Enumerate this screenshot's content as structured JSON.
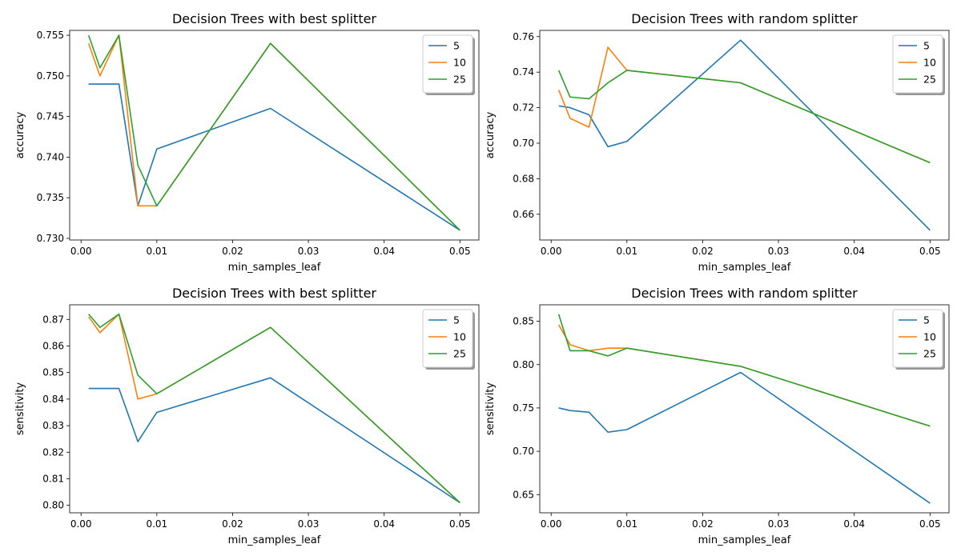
{
  "chart_data": [
    {
      "type": "line",
      "title": "Decision Trees with best splitter",
      "xlabel": "min_samples_leaf",
      "ylabel": "accuracy",
      "x": [
        0.001,
        0.0025,
        0.005,
        0.0075,
        0.01,
        0.025,
        0.05
      ],
      "xlim": [
        -0.0015,
        0.0525
      ],
      "ylim": [
        0.7298,
        0.7556
      ],
      "xticks": [
        0.0,
        0.01,
        0.02,
        0.03,
        0.04,
        0.05
      ],
      "xtick_labels": [
        "0.00",
        "0.01",
        "0.02",
        "0.03",
        "0.04",
        "0.05"
      ],
      "yticks": [
        0.73,
        0.735,
        0.74,
        0.745,
        0.75,
        0.755
      ],
      "ytick_labels": [
        "0.730",
        "0.735",
        "0.740",
        "0.745",
        "0.750",
        "0.755"
      ],
      "legend_position": "top-right",
      "series": [
        {
          "name": "5",
          "color": "#1f77b4",
          "values": [
            0.749,
            0.749,
            0.749,
            0.734,
            0.741,
            0.746,
            0.731
          ]
        },
        {
          "name": "10",
          "color": "#ff7f0e",
          "values": [
            0.754,
            0.75,
            0.755,
            0.734,
            0.734,
            0.754,
            0.731
          ]
        },
        {
          "name": "25",
          "color": "#2ca02c",
          "values": [
            0.755,
            0.751,
            0.755,
            0.739,
            0.734,
            0.754,
            0.731
          ]
        }
      ]
    },
    {
      "type": "line",
      "title": "Decision Trees with random splitter",
      "xlabel": "min_samples_leaf",
      "ylabel": "accuracy",
      "x": [
        0.001,
        0.0025,
        0.005,
        0.0075,
        0.01,
        0.025,
        0.05
      ],
      "xlim": [
        -0.0015,
        0.0525
      ],
      "ylim": [
        0.6455,
        0.7635
      ],
      "xticks": [
        0.0,
        0.01,
        0.02,
        0.03,
        0.04,
        0.05
      ],
      "xtick_labels": [
        "0.00",
        "0.01",
        "0.02",
        "0.03",
        "0.04",
        "0.05"
      ],
      "yticks": [
        0.66,
        0.68,
        0.7,
        0.72,
        0.74,
        0.76
      ],
      "ytick_labels": [
        "0.66",
        "0.68",
        "0.70",
        "0.72",
        "0.74",
        "0.76"
      ],
      "legend_position": "top-right",
      "series": [
        {
          "name": "5",
          "color": "#1f77b4",
          "values": [
            0.721,
            0.72,
            0.716,
            0.698,
            0.701,
            0.758,
            0.651
          ]
        },
        {
          "name": "10",
          "color": "#ff7f0e",
          "values": [
            0.73,
            0.714,
            0.709,
            0.754,
            0.741,
            0.734,
            0.689
          ]
        },
        {
          "name": "25",
          "color": "#2ca02c",
          "values": [
            0.741,
            0.726,
            0.725,
            0.734,
            0.741,
            0.734,
            0.689
          ]
        }
      ]
    },
    {
      "type": "line",
      "title": "Decision Trees with best splitter",
      "xlabel": "min_samples_leaf",
      "ylabel": "sensitivity",
      "x": [
        0.001,
        0.0025,
        0.005,
        0.0075,
        0.01,
        0.025,
        0.05
      ],
      "xlim": [
        -0.0015,
        0.0525
      ],
      "ylim": [
        0.7972,
        0.8755
      ],
      "xticks": [
        0.0,
        0.01,
        0.02,
        0.03,
        0.04,
        0.05
      ],
      "xtick_labels": [
        "0.00",
        "0.01",
        "0.02",
        "0.03",
        "0.04",
        "0.05"
      ],
      "yticks": [
        0.8,
        0.81,
        0.82,
        0.83,
        0.84,
        0.85,
        0.86,
        0.87
      ],
      "ytick_labels": [
        "0.80",
        "0.81",
        "0.82",
        "0.83",
        "0.84",
        "0.85",
        "0.86",
        "0.87"
      ],
      "legend_position": "top-right",
      "series": [
        {
          "name": "5",
          "color": "#1f77b4",
          "values": [
            0.844,
            0.844,
            0.844,
            0.824,
            0.835,
            0.848,
            0.801
          ]
        },
        {
          "name": "10",
          "color": "#ff7f0e",
          "values": [
            0.871,
            0.865,
            0.872,
            0.84,
            0.842,
            0.867,
            0.801
          ]
        },
        {
          "name": "25",
          "color": "#2ca02c",
          "values": [
            0.872,
            0.867,
            0.872,
            0.849,
            0.842,
            0.867,
            0.801
          ]
        }
      ]
    },
    {
      "type": "line",
      "title": "Decision Trees with random splitter",
      "xlabel": "min_samples_leaf",
      "ylabel": "sensitivity",
      "x": [
        0.001,
        0.0025,
        0.005,
        0.0075,
        0.01,
        0.025,
        0.05
      ],
      "xlim": [
        -0.0015,
        0.0525
      ],
      "ylim": [
        0.629,
        0.869
      ],
      "xticks": [
        0.0,
        0.01,
        0.02,
        0.03,
        0.04,
        0.05
      ],
      "xtick_labels": [
        "0.00",
        "0.01",
        "0.02",
        "0.03",
        "0.04",
        "0.05"
      ],
      "yticks": [
        0.65,
        0.7,
        0.75,
        0.8,
        0.85
      ],
      "ytick_labels": [
        "0.65",
        "0.70",
        "0.75",
        "0.80",
        "0.85"
      ],
      "legend_position": "top-right",
      "series": [
        {
          "name": "5",
          "color": "#1f77b4",
          "values": [
            0.75,
            0.747,
            0.745,
            0.722,
            0.725,
            0.791,
            0.64
          ]
        },
        {
          "name": "10",
          "color": "#ff7f0e",
          "values": [
            0.846,
            0.823,
            0.816,
            0.819,
            0.819,
            0.798,
            0.729
          ]
        },
        {
          "name": "25",
          "color": "#2ca02c",
          "values": [
            0.858,
            0.816,
            0.816,
            0.81,
            0.819,
            0.798,
            0.729
          ]
        }
      ]
    }
  ]
}
